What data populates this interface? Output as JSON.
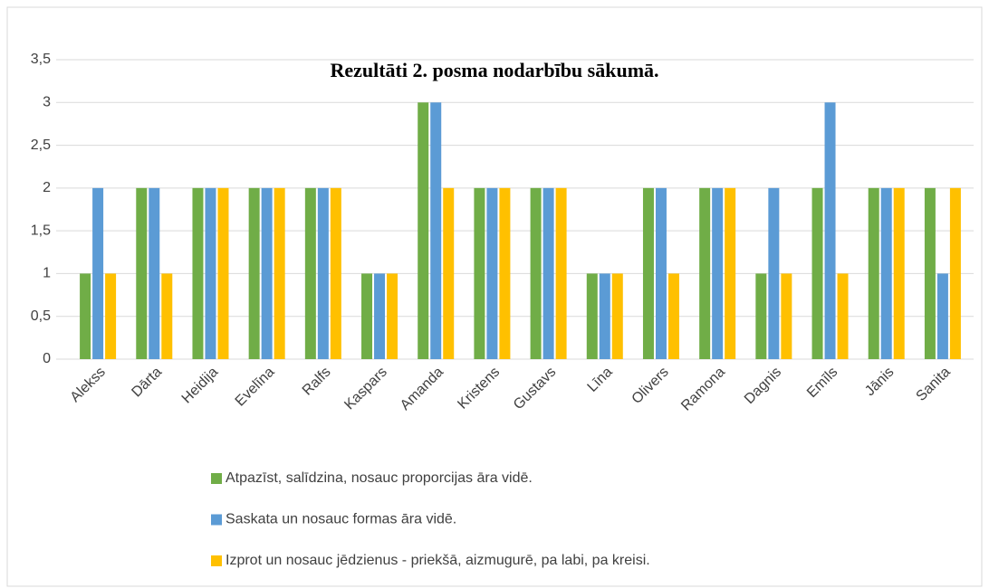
{
  "chart_data": {
    "type": "bar",
    "title": "Rezultāti 2. posma nodarbību sākumā.",
    "categories": [
      "Alekss",
      "Dārta",
      "Heidija",
      "Evelīna",
      "Ralfs",
      "Kaspars",
      "Amanda",
      "Kristens",
      "Gustavs",
      "Līna",
      "Olivers",
      "Ramona",
      "Dagnis",
      "Emīls",
      "Jānis",
      "Sanita"
    ],
    "series": [
      {
        "name": "Atpazīst, salīdzina, nosauc proporcijas āra vidē.",
        "color": "#70ad47",
        "values": [
          1,
          2,
          2,
          2,
          2,
          1,
          3,
          2,
          2,
          1,
          2,
          2,
          1,
          2,
          2,
          2
        ]
      },
      {
        "name": "Saskata un nosauc formas āra vidē.",
        "color": "#5b9bd5",
        "values": [
          2,
          2,
          2,
          2,
          2,
          1,
          3,
          2,
          2,
          1,
          2,
          2,
          2,
          3,
          2,
          1
        ]
      },
      {
        "name": "Izprot un nosauc jēdzienus - priekšā, aizmugurē, pa labi, pa kreisi.",
        "color": "#ffc000",
        "values": [
          1,
          1,
          2,
          2,
          2,
          1,
          2,
          2,
          2,
          1,
          1,
          2,
          1,
          1,
          2,
          2
        ]
      }
    ],
    "ylim": [
      0,
      3.5
    ],
    "yticks": [
      0,
      {
        "value": 0.5,
        "label": "0,5"
      },
      1,
      {
        "value": 1.5,
        "label": "1,5"
      },
      2,
      {
        "value": 2.5,
        "label": "2,5"
      },
      3,
      {
        "value": 3.5,
        "label": "3,5"
      }
    ],
    "grid": true,
    "legend": "bottom"
  }
}
